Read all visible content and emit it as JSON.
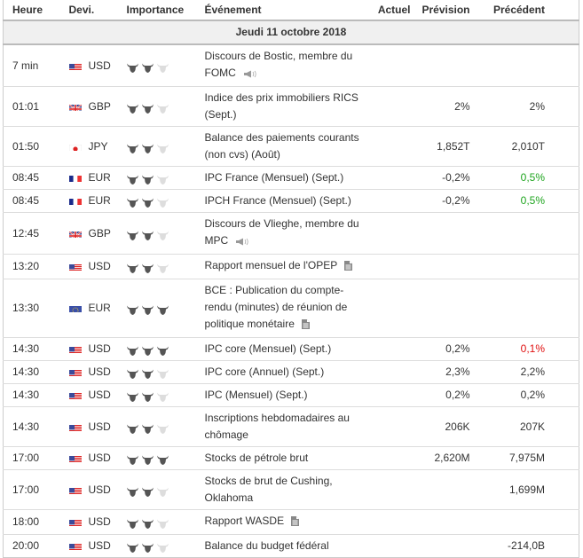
{
  "headers": {
    "time": "Heure",
    "currency": "Devi.",
    "importance": "Importance",
    "event": "Événement",
    "actual": "Actuel",
    "forecast": "Prévision",
    "previous": "Précédent"
  },
  "date_label": "Jeudi 11 octobre 2018",
  "colors": {
    "bull_active": "#555555",
    "bull_inactive": "#dddddd",
    "positive": "#1ea51e",
    "negative": "#e01010"
  },
  "rows": [
    {
      "time": "7 min",
      "flag": "us",
      "currency": "USD",
      "importance": 2,
      "event": "Discours de Bostic, membre du FOMC",
      "icon": "speaker-icon",
      "actual": "",
      "forecast": "",
      "previous": "",
      "previous_color": ""
    },
    {
      "time": "01:01",
      "flag": "gb",
      "currency": "GBP",
      "importance": 2,
      "event": "Indice des prix immobiliers RICS (Sept.)",
      "icon": "",
      "actual": "",
      "forecast": "2%",
      "previous": "2%",
      "previous_color": ""
    },
    {
      "time": "01:50",
      "flag": "jp",
      "currency": "JPY",
      "importance": 2,
      "event": "Balance des paiements courants (non cvs) (Août)",
      "icon": "",
      "actual": "",
      "forecast": "1,852T",
      "previous": "2,010T",
      "previous_color": ""
    },
    {
      "time": "08:45",
      "flag": "fr",
      "currency": "EUR",
      "importance": 2,
      "event": "IPC France (Mensuel) (Sept.)",
      "icon": "",
      "actual": "",
      "forecast": "-0,2%",
      "previous": "0,5%",
      "previous_color": "green"
    },
    {
      "time": "08:45",
      "flag": "fr",
      "currency": "EUR",
      "importance": 2,
      "event": "IPCH France (Mensuel) (Sept.)",
      "icon": "",
      "actual": "",
      "forecast": "-0,2%",
      "previous": "0,5%",
      "previous_color": "green"
    },
    {
      "time": "12:45",
      "flag": "gb",
      "currency": "GBP",
      "importance": 2,
      "event": "Discours de Vlieghe, membre du MPC",
      "icon": "speaker-icon",
      "actual": "",
      "forecast": "",
      "previous": "",
      "previous_color": ""
    },
    {
      "time": "13:20",
      "flag": "us",
      "currency": "USD",
      "importance": 2,
      "event": "Rapport mensuel de l'OPEP",
      "icon": "document-icon",
      "actual": "",
      "forecast": "",
      "previous": "",
      "previous_color": ""
    },
    {
      "time": "13:30",
      "flag": "eu",
      "currency": "EUR",
      "importance": 3,
      "event": "BCE : Publication du compte-rendu (minutes) de réunion de politique monétaire",
      "icon": "document-icon",
      "actual": "",
      "forecast": "",
      "previous": "",
      "previous_color": ""
    },
    {
      "time": "14:30",
      "flag": "us",
      "currency": "USD",
      "importance": 3,
      "event": "IPC core (Mensuel) (Sept.)",
      "icon": "",
      "actual": "",
      "forecast": "0,2%",
      "previous": "0,1%",
      "previous_color": "red"
    },
    {
      "time": "14:30",
      "flag": "us",
      "currency": "USD",
      "importance": 2,
      "event": "IPC core (Annuel) (Sept.)",
      "icon": "",
      "actual": "",
      "forecast": "2,3%",
      "previous": "2,2%",
      "previous_color": ""
    },
    {
      "time": "14:30",
      "flag": "us",
      "currency": "USD",
      "importance": 2,
      "event": "IPC (Mensuel) (Sept.)",
      "icon": "",
      "actual": "",
      "forecast": "0,2%",
      "previous": "0,2%",
      "previous_color": ""
    },
    {
      "time": "14:30",
      "flag": "us",
      "currency": "USD",
      "importance": 2,
      "event": "Inscriptions hebdomadaires au chômage",
      "icon": "",
      "actual": "",
      "forecast": "206K",
      "previous": "207K",
      "previous_color": ""
    },
    {
      "time": "17:00",
      "flag": "us",
      "currency": "USD",
      "importance": 3,
      "event": "Stocks de pétrole brut",
      "icon": "",
      "actual": "",
      "forecast": "2,620M",
      "previous": "7,975M",
      "previous_color": ""
    },
    {
      "time": "17:00",
      "flag": "us",
      "currency": "USD",
      "importance": 2,
      "event": "Stocks de brut de Cushing, Oklahoma",
      "icon": "",
      "actual": "",
      "forecast": "",
      "previous": "1,699M",
      "previous_color": ""
    },
    {
      "time": "18:00",
      "flag": "us",
      "currency": "USD",
      "importance": 2,
      "event": "Rapport WASDE",
      "icon": "document-icon",
      "actual": "",
      "forecast": "",
      "previous": "",
      "previous_color": ""
    },
    {
      "time": "20:00",
      "flag": "us",
      "currency": "USD",
      "importance": 2,
      "event": "Balance du budget fédéral",
      "icon": "",
      "actual": "",
      "forecast": "",
      "previous": "-214,0B",
      "previous_color": ""
    }
  ]
}
